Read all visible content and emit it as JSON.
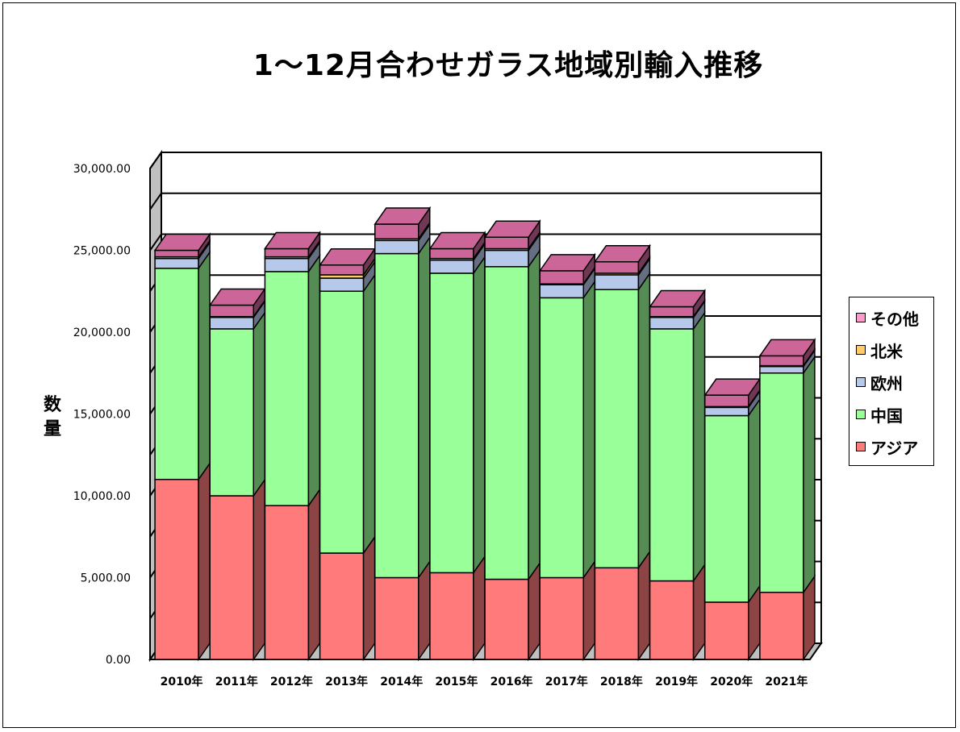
{
  "chart_data": {
    "type": "bar",
    "stacked": true,
    "title": "1～12月合わせガラス地域別輸入推移",
    "ylabel": "数量",
    "xlabel": "",
    "ylim": [
      0,
      30000
    ],
    "yticks": [
      "0.00",
      "5,000.00",
      "10,000.00",
      "15,000.00",
      "20,000.00",
      "25,000.00",
      "30,000.00"
    ],
    "ytick_values": [
      0,
      5000,
      10000,
      15000,
      20000,
      25000,
      30000
    ],
    "grid": true,
    "legend_position": "right",
    "categories": [
      "2010年",
      "2011年",
      "2012年",
      "2013年",
      "2014年",
      "2015年",
      "2016年",
      "2017年",
      "2018年",
      "2019年",
      "2020年",
      "2021年"
    ],
    "series": [
      {
        "name": "アジア",
        "color": "#ff7b7b",
        "values": [
          11000,
          10000,
          9400,
          6500,
          5000,
          5300,
          4900,
          5000,
          5600,
          4800,
          3500,
          4100
        ]
      },
      {
        "name": "中国",
        "color": "#99ff99",
        "values": [
          12900,
          10200,
          14300,
          16000,
          19800,
          18300,
          19100,
          17100,
          17000,
          15400,
          11400,
          13400
        ]
      },
      {
        "name": "欧州",
        "color": "#b7c9ea",
        "values": [
          600,
          700,
          800,
          800,
          800,
          800,
          1000,
          800,
          900,
          700,
          500,
          400
        ]
      },
      {
        "name": "北米",
        "color": "#ffcc66",
        "values": [
          100,
          50,
          100,
          200,
          100,
          100,
          100,
          50,
          100,
          50,
          50,
          50
        ]
      },
      {
        "name": "その他",
        "color": "#cc6699",
        "values": [
          400,
          700,
          500,
          600,
          900,
          600,
          700,
          800,
          700,
          600,
          700,
          600
        ]
      }
    ]
  },
  "legend": {
    "items": [
      {
        "label": "その他",
        "color": "#ff99cc"
      },
      {
        "label": "北米",
        "color": "#ffcc66"
      },
      {
        "label": "欧州",
        "color": "#b7c9ea"
      },
      {
        "label": "中国",
        "color": "#99ff99"
      },
      {
        "label": "アジア",
        "color": "#ff7b7b"
      }
    ]
  }
}
